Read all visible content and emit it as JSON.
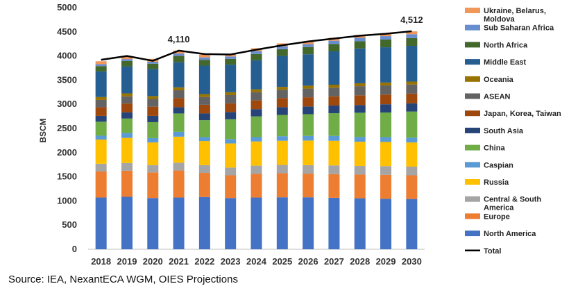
{
  "chart_data": {
    "type": "bar",
    "stacked": true,
    "title": "",
    "xlabel": "",
    "ylabel": "BSCM",
    "ylim": [
      0,
      5000
    ],
    "yticks": [
      0,
      500,
      1000,
      1500,
      2000,
      2500,
      3000,
      3500,
      4000,
      4500,
      5000
    ],
    "categories": [
      "2018",
      "2019",
      "2020",
      "2021",
      "2022",
      "2023",
      "2024",
      "2025",
      "2026",
      "2027",
      "2028",
      "2029",
      "2030"
    ],
    "series": [
      {
        "name": "North America",
        "color": "#4472C4",
        "values": [
          1070,
          1085,
          1060,
          1070,
          1080,
          1060,
          1070,
          1075,
          1075,
          1065,
          1055,
          1045,
          1040
        ]
      },
      {
        "name": "Europe",
        "color": "#ED7D31",
        "values": [
          540,
          540,
          530,
          560,
          500,
          470,
          490,
          500,
          490,
          490,
          490,
          495,
          490
        ]
      },
      {
        "name": "Central & South America",
        "color": "#A5A5A5",
        "values": [
          160,
          160,
          150,
          160,
          160,
          160,
          170,
          170,
          175,
          180,
          180,
          180,
          180
        ]
      },
      {
        "name": "Russia",
        "color": "#FFC000",
        "values": [
          500,
          520,
          470,
          540,
          500,
          500,
          500,
          500,
          510,
          510,
          500,
          500,
          500
        ]
      },
      {
        "name": "Caspian",
        "color": "#5B9BD5",
        "values": [
          80,
          100,
          90,
          100,
          80,
          90,
          90,
          95,
          95,
          100,
          100,
          100,
          100
        ]
      },
      {
        "name": "China",
        "color": "#70AD47",
        "values": [
          290,
          300,
          330,
          380,
          350,
          410,
          430,
          440,
          450,
          470,
          500,
          510,
          540
        ]
      },
      {
        "name": "South Asia",
        "color": "#264478",
        "values": [
          120,
          130,
          130,
          130,
          140,
          150,
          150,
          160,
          160,
          160,
          160,
          170,
          170
        ]
      },
      {
        "name": "Japan, Korea, Taiwan",
        "color": "#9E480E",
        "values": [
          180,
          180,
          190,
          190,
          180,
          180,
          180,
          190,
          190,
          190,
          200,
          200,
          200
        ]
      },
      {
        "name": "ASEAN",
        "color": "#636363",
        "values": [
          150,
          150,
          160,
          160,
          160,
          170,
          170,
          170,
          180,
          180,
          190,
          190,
          190
        ]
      },
      {
        "name": "Oceania",
        "color": "#997300",
        "values": [
          60,
          60,
          60,
          60,
          60,
          60,
          60,
          60,
          60,
          60,
          60,
          60,
          60
        ]
      },
      {
        "name": "Middle East",
        "color": "#255E91",
        "values": [
          530,
          560,
          560,
          520,
          590,
          570,
          600,
          640,
          650,
          690,
          720,
          730,
          740
        ]
      },
      {
        "name": "North Africa",
        "color": "#43682B",
        "values": [
          110,
          110,
          110,
          130,
          120,
          120,
          130,
          140,
          150,
          150,
          150,
          160,
          160
        ]
      },
      {
        "name": "Sub Saharan Africa",
        "color": "#698ED0",
        "values": [
          40,
          40,
          40,
          50,
          50,
          50,
          60,
          60,
          60,
          70,
          70,
          70,
          80
        ]
      },
      {
        "name": "Ukraine, Belarus, Moldova",
        "color": "#F1975A",
        "values": [
          60,
          60,
          60,
          60,
          60,
          60,
          60,
          60,
          60,
          60,
          60,
          60,
          60
        ]
      }
    ],
    "total": {
      "name": "Total",
      "color": "#000000",
      "values": [
        3920,
        4000,
        3900,
        4110,
        4040,
        4030,
        4130,
        4220,
        4300,
        4360,
        4420,
        4460,
        4512
      ]
    },
    "annotations": [
      {
        "category": "2021",
        "text": "4,110"
      },
      {
        "category": "2030",
        "text": "4,512"
      }
    ],
    "legend_position": "right"
  },
  "source_text": "Source: IEA, NexantECA WGM, OIES Projections"
}
